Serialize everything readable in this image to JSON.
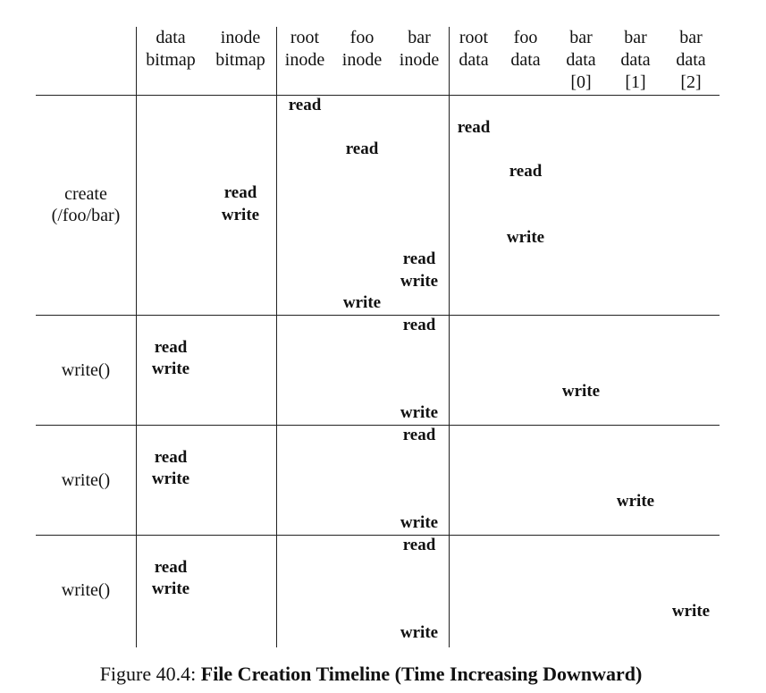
{
  "columns": [
    {
      "id": "data-bitmap",
      "lines": [
        "data",
        "bitmap"
      ]
    },
    {
      "id": "inode-bitmap",
      "lines": [
        "inode",
        "bitmap"
      ]
    },
    {
      "id": "root-inode",
      "lines": [
        "root",
        "inode"
      ]
    },
    {
      "id": "foo-inode",
      "lines": [
        "foo",
        "inode"
      ]
    },
    {
      "id": "bar-inode",
      "lines": [
        "bar",
        "inode"
      ]
    },
    {
      "id": "root-data",
      "lines": [
        "root",
        "data"
      ]
    },
    {
      "id": "foo-data",
      "lines": [
        "foo",
        "data"
      ]
    },
    {
      "id": "bar-data-0",
      "lines": [
        "bar",
        "data",
        "[0]"
      ]
    },
    {
      "id": "bar-data-1",
      "lines": [
        "bar",
        "data",
        "[1]"
      ]
    },
    {
      "id": "bar-data-2",
      "lines": [
        "bar",
        "data",
        "[2]"
      ]
    }
  ],
  "sections": [
    {
      "label_lines": [
        "create",
        "(/foo/bar)"
      ],
      "slots": 10,
      "ops": [
        {
          "slot": 0,
          "col": 2,
          "text": "read"
        },
        {
          "slot": 1,
          "col": 5,
          "text": "read"
        },
        {
          "slot": 2,
          "col": 3,
          "text": "read"
        },
        {
          "slot": 3,
          "col": 6,
          "text": "read"
        },
        {
          "slot": 4,
          "col": 1,
          "text": "read"
        },
        {
          "slot": 5,
          "col": 1,
          "text": "write"
        },
        {
          "slot": 6,
          "col": 6,
          "text": "write"
        },
        {
          "slot": 7,
          "col": 4,
          "text": "read"
        },
        {
          "slot": 8,
          "col": 4,
          "text": "write"
        },
        {
          "slot": 9,
          "col": 3,
          "text": "write"
        }
      ]
    },
    {
      "label_lines": [
        "write()"
      ],
      "slots": 5,
      "ops": [
        {
          "slot": 0,
          "col": 4,
          "text": "read"
        },
        {
          "slot": 1,
          "col": 0,
          "text": "read"
        },
        {
          "slot": 2,
          "col": 0,
          "text": "write"
        },
        {
          "slot": 3,
          "col": 7,
          "text": "write"
        },
        {
          "slot": 4,
          "col": 4,
          "text": "write"
        }
      ]
    },
    {
      "label_lines": [
        "write()"
      ],
      "slots": 5,
      "ops": [
        {
          "slot": 0,
          "col": 4,
          "text": "read"
        },
        {
          "slot": 1,
          "col": 0,
          "text": "read"
        },
        {
          "slot": 2,
          "col": 0,
          "text": "write"
        },
        {
          "slot": 3,
          "col": 8,
          "text": "write"
        },
        {
          "slot": 4,
          "col": 4,
          "text": "write"
        }
      ]
    },
    {
      "label_lines": [
        "write()"
      ],
      "slots": 5,
      "ops": [
        {
          "slot": 0,
          "col": 4,
          "text": "read"
        },
        {
          "slot": 1,
          "col": 0,
          "text": "read"
        },
        {
          "slot": 2,
          "col": 0,
          "text": "write"
        },
        {
          "slot": 3,
          "col": 9,
          "text": "write"
        },
        {
          "slot": 4,
          "col": 4,
          "text": "write"
        }
      ]
    }
  ],
  "caption": {
    "prefix": "Figure 40.4: ",
    "title": "File Creation Timeline (Time Increasing Downward)"
  }
}
